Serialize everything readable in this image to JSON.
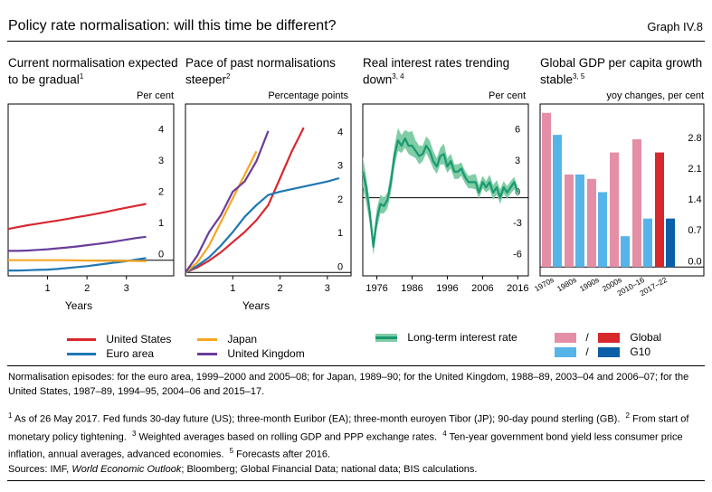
{
  "header": {
    "title": "Policy rate normalisation: will this time be different?",
    "graph_id": "Graph IV.8"
  },
  "panels": [
    {
      "title": "Current normalisation expected to be gradual",
      "title_sup": "1",
      "unit": "Per cent"
    },
    {
      "title": "Pace of past normalisations steeper",
      "title_sup": "2",
      "unit": "Percentage points"
    },
    {
      "title": "Real interest rates trending down",
      "title_sup": "3, 4",
      "unit": "Per cent"
    },
    {
      "title": "Global GDP per capita growth stable",
      "title_sup": "3, 5",
      "unit": "yoy changes, per cent"
    }
  ],
  "legends": {
    "panel1": [
      {
        "label": "United States",
        "color": "#d7282e"
      },
      {
        "label": "Euro area",
        "color": "#1f77b4"
      }
    ],
    "panel2": [
      {
        "label": "Japan",
        "color": "#f5a623"
      },
      {
        "label": "United Kingdom",
        "color": "#6a3d9a"
      }
    ],
    "panel3": [
      {
        "label": "Long-term interest rate",
        "color": "#1a9970",
        "band_color": "#7fcca5"
      }
    ],
    "panel4": [
      {
        "label": "Global",
        "light": "#e48fa6",
        "dark": "#d7282e"
      },
      {
        "label": "G10",
        "light": "#56b4e9",
        "dark": "#0a5fa8"
      }
    ],
    "separator": "/"
  },
  "footnotes": {
    "note": "Normalisation episodes: for the euro area, 1999–2000 and 2005–08; for Japan, 1989–90; for the United Kingdom, 1988–89, 2003–04 and 2006–07; for the United States, 1987–89, 1994–95, 2004–06 and 2015–17.",
    "f1": "As of 26 May 2017. Fed funds 30-day future (US); three-month Euribor (EA); three-month euroyen Tibor (JP); 90-day pound sterling (GB).",
    "f2": "From start of monetary policy tightening.",
    "f3": "Weighted averages based on rolling GDP and PPP exchange rates.",
    "f4": "Ten-year government bond yield less consumer price inflation, annual averages, advanced economies.",
    "f5": "Forecasts after 2016.",
    "sources_prefix": "Sources: IMF,",
    "sources_italic": "World Economic Outlook",
    "sources_suffix": "; Bloomberg; Global Financial Data; national data; BIS calculations."
  },
  "chart_data": [
    {
      "type": "line",
      "xlabel": "Years",
      "xlim": [
        0,
        4.2
      ],
      "ylim": [
        -0.5,
        5
      ],
      "xticks": [
        1,
        2,
        3
      ],
      "yticks": [
        0,
        1,
        2,
        3,
        4
      ],
      "series": [
        {
          "name": "United States",
          "color": "#d7282e",
          "x": [
            0,
            0.25,
            0.5,
            0.75,
            1,
            1.25,
            1.5,
            1.75,
            2,
            2.25,
            2.5,
            2.75,
            3,
            3.25,
            3.5
          ],
          "y": [
            1.0,
            1.06,
            1.12,
            1.17,
            1.22,
            1.27,
            1.32,
            1.38,
            1.43,
            1.49,
            1.55,
            1.62,
            1.68,
            1.74,
            1.8
          ]
        },
        {
          "name": "Euro area",
          "color": "#1f77b4",
          "x": [
            0,
            0.25,
            0.5,
            0.75,
            1,
            1.25,
            1.5,
            1.75,
            2,
            2.25,
            2.5,
            2.75,
            3,
            3.25,
            3.5
          ],
          "y": [
            -0.33,
            -0.33,
            -0.32,
            -0.31,
            -0.3,
            -0.28,
            -0.25,
            -0.22,
            -0.19,
            -0.15,
            -0.11,
            -0.07,
            -0.03,
            0.02,
            0.07
          ]
        },
        {
          "name": "Japan",
          "color": "#f5a623",
          "x": [
            0,
            0.5,
            1,
            1.5,
            2,
            2.5,
            3,
            3.5
          ],
          "y": [
            0.0,
            0.0,
            0.0,
            0.0,
            -0.01,
            -0.02,
            -0.02,
            -0.03
          ]
        },
        {
          "name": "United Kingdom",
          "color": "#6a3d9a",
          "x": [
            0,
            0.25,
            0.5,
            0.75,
            1,
            1.25,
            1.5,
            1.75,
            2,
            2.25,
            2.5,
            2.75,
            3,
            3.25,
            3.5
          ],
          "y": [
            0.3,
            0.3,
            0.31,
            0.33,
            0.35,
            0.38,
            0.41,
            0.44,
            0.48,
            0.52,
            0.56,
            0.61,
            0.66,
            0.71,
            0.75
          ]
        }
      ]
    },
    {
      "type": "line",
      "xlabel": "Years",
      "xlim": [
        0,
        3.5
      ],
      "ylim": [
        -0.1,
        5
      ],
      "xticks": [
        1,
        2,
        3
      ],
      "yticks": [
        0,
        1,
        2,
        3,
        4
      ],
      "series": [
        {
          "name": "United States",
          "color": "#d7282e",
          "x": [
            0,
            0.25,
            0.5,
            0.75,
            1,
            1.25,
            1.5,
            1.75,
            2,
            2.25,
            2.5
          ],
          "y": [
            0,
            0.15,
            0.35,
            0.6,
            0.9,
            1.2,
            1.55,
            2.0,
            2.8,
            3.6,
            4.3
          ]
        },
        {
          "name": "Euro area",
          "color": "#1f77b4",
          "x": [
            0,
            0.25,
            0.5,
            0.75,
            1,
            1.25,
            1.5,
            1.75,
            2,
            2.5,
            3,
            3.25
          ],
          "y": [
            0,
            0.2,
            0.45,
            0.8,
            1.2,
            1.65,
            2.0,
            2.3,
            2.4,
            2.55,
            2.7,
            2.8
          ]
        },
        {
          "name": "Japan",
          "color": "#f5a623",
          "x": [
            0,
            0.25,
            0.5,
            0.75,
            1,
            1.25,
            1.5
          ],
          "y": [
            0,
            0.3,
            0.8,
            1.5,
            2.2,
            2.9,
            3.6
          ]
        },
        {
          "name": "United Kingdom",
          "color": "#6a3d9a",
          "x": [
            0,
            0.25,
            0.5,
            0.75,
            1,
            1.25,
            1.5,
            1.75
          ],
          "y": [
            0,
            0.5,
            1.2,
            1.7,
            2.4,
            2.7,
            3.3,
            4.2
          ]
        }
      ]
    },
    {
      "type": "line",
      "xlim": [
        1972,
        2019
      ],
      "ylim": [
        -7.5,
        9
      ],
      "xticks": [
        1976,
        1986,
        1996,
        2006,
        2016
      ],
      "yticks": [
        -6,
        -3,
        0,
        3,
        6
      ],
      "series": [
        {
          "name": "Long-term interest rate",
          "color": "#1a9970",
          "x": [
            1972,
            1973,
            1974,
            1975,
            1976,
            1977,
            1978,
            1979,
            1980,
            1981,
            1982,
            1983,
            1984,
            1985,
            1986,
            1987,
            1988,
            1989,
            1990,
            1991,
            1992,
            1993,
            1994,
            1995,
            1996,
            1997,
            1998,
            1999,
            2000,
            2001,
            2002,
            2003,
            2004,
            2005,
            2006,
            2007,
            2008,
            2009,
            2010,
            2011,
            2012,
            2013,
            2014,
            2015,
            2016
          ],
          "y": [
            2.5,
            1.0,
            -1.5,
            -4.7,
            -2.0,
            -0.6,
            -0.8,
            -0.2,
            1.5,
            4.0,
            5.5,
            5.0,
            5.7,
            5.0,
            5.0,
            4.5,
            4.0,
            4.2,
            5.0,
            4.5,
            3.5,
            3.0,
            4.0,
            4.2,
            3.0,
            3.5,
            2.5,
            2.5,
            2.8,
            2.0,
            1.5,
            1.5,
            1.5,
            0.5,
            1.5,
            1.0,
            1.5,
            0.5,
            1.0,
            0.0,
            1.0,
            0.5,
            1.0,
            1.5,
            0.5
          ],
          "lower": [
            1.0,
            -0.5,
            -2.5,
            -5.5,
            -3.0,
            -1.5,
            -1.5,
            -1.0,
            0.5,
            3.0,
            4.5,
            4.3,
            4.8,
            4.2,
            4.0,
            3.8,
            3.2,
            3.5,
            4.3,
            3.6,
            2.8,
            2.3,
            3.2,
            3.2,
            2.4,
            2.8,
            1.8,
            1.8,
            2.1,
            1.4,
            0.9,
            0.9,
            0.8,
            -0.1,
            0.9,
            0.5,
            0.8,
            -0.2,
            0.3,
            -0.6,
            0.4,
            -0.1,
            0.4,
            0.8,
            0.0
          ],
          "upper": [
            4.0,
            2.0,
            -0.5,
            -3.8,
            -1.0,
            0.3,
            0.0,
            0.5,
            2.5,
            5.0,
            6.7,
            6.0,
            6.5,
            6.3,
            6.4,
            5.5,
            5.0,
            5.0,
            5.9,
            5.5,
            4.5,
            3.8,
            4.8,
            5.2,
            3.8,
            4.2,
            3.2,
            3.2,
            3.4,
            2.6,
            2.1,
            2.2,
            2.3,
            1.2,
            2.1,
            1.6,
            2.2,
            1.2,
            1.7,
            0.8,
            1.6,
            1.1,
            1.6,
            2.0,
            1.0
          ]
        }
      ]
    },
    {
      "type": "bar",
      "ylim": [
        -0.2,
        3.7
      ],
      "yticks": [
        0.0,
        0.7,
        1.4,
        2.1,
        2.8
      ],
      "ytick_labels": [
        "0.0",
        "0.7",
        "1.4",
        "2.1",
        "2.8"
      ],
      "categories": [
        "1970s",
        "1980s",
        "1990s",
        "2000s",
        "2010–16",
        "2017–22"
      ],
      "series": [
        {
          "name": "Global",
          "colors": [
            "#e48fa6",
            "#e48fa6",
            "#e48fa6",
            "#e48fa6",
            "#e48fa6",
            "#d7282e"
          ],
          "values": [
            3.5,
            2.1,
            2.0,
            2.6,
            2.9,
            2.6
          ]
        },
        {
          "name": "G10",
          "colors": [
            "#56b4e9",
            "#56b4e9",
            "#56b4e9",
            "#56b4e9",
            "#56b4e9",
            "#0a5fa8"
          ],
          "values": [
            3.0,
            2.1,
            1.7,
            0.7,
            1.1,
            1.1
          ]
        }
      ]
    }
  ]
}
